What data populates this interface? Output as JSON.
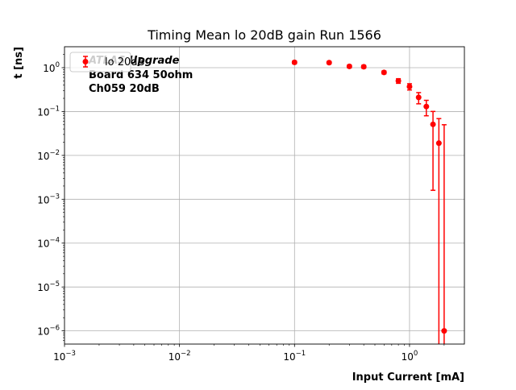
{
  "chart_data": {
    "type": "scatter",
    "title": "Timing Mean lo 20dB gain Run 1566",
    "xlabel": "Input Current [mA]",
    "ylabel": "t [ns]",
    "xscale": "log",
    "yscale": "log",
    "xlim": [
      0.001,
      3
    ],
    "ylim": [
      5e-07,
      3
    ],
    "grid": true,
    "legend_position": "top-left",
    "x_ticks": [
      {
        "value": 0.001,
        "base": "10",
        "exp": "−3"
      },
      {
        "value": 0.01,
        "base": "10",
        "exp": "−2"
      },
      {
        "value": 0.1,
        "base": "10",
        "exp": "−1"
      },
      {
        "value": 1,
        "base": "10",
        "exp": "0"
      }
    ],
    "y_ticks": [
      {
        "value": 1e-06,
        "base": "10",
        "exp": "−6"
      },
      {
        "value": 1e-05,
        "base": "10",
        "exp": "−5"
      },
      {
        "value": 0.0001,
        "base": "10",
        "exp": "−4"
      },
      {
        "value": 0.001,
        "base": "10",
        "exp": "−3"
      },
      {
        "value": 0.01,
        "base": "10",
        "exp": "−2"
      },
      {
        "value": 0.1,
        "base": "10",
        "exp": "−1"
      },
      {
        "value": 1,
        "base": "10",
        "exp": "0"
      }
    ],
    "annotation": [
      "ATLAS Upgrade",
      "Board 634 50ohm",
      "Ch059 20dB"
    ],
    "series": [
      {
        "name": "lo 20dB",
        "color": "#ff0000",
        "points": [
          {
            "x": 0.1,
            "y": 1.32,
            "err": 0.1
          },
          {
            "x": 0.2,
            "y": 1.3,
            "err": 0.08
          },
          {
            "x": 0.3,
            "y": 1.07,
            "err": 0.08
          },
          {
            "x": 0.4,
            "y": 1.05,
            "err": 0.08
          },
          {
            "x": 0.6,
            "y": 0.78,
            "err": 0.06
          },
          {
            "x": 0.8,
            "y": 0.5,
            "err": 0.06
          },
          {
            "x": 1.0,
            "y": 0.37,
            "err": 0.06
          },
          {
            "x": 1.2,
            "y": 0.21,
            "err": 0.06
          },
          {
            "x": 1.4,
            "y": 0.13,
            "err": 0.05
          },
          {
            "x": 1.6,
            "y": 0.051,
            "err": 0.0494
          },
          {
            "x": 1.8,
            "y": 0.019,
            "err": 0.05
          },
          {
            "x": 2.0,
            "y": 1e-06,
            "err": 0.05
          }
        ]
      }
    ]
  }
}
